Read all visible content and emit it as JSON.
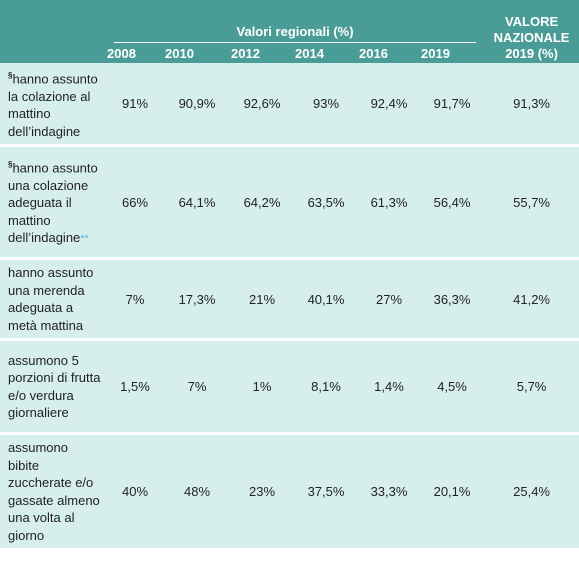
{
  "header": {
    "group_title": "Valori regionali (%)",
    "national_line1": "VALORE",
    "national_line2": "NAZIONALE",
    "national_line3": "2019 (%)",
    "years": [
      "2008",
      "2010",
      "2012",
      "2014",
      "2016",
      "2019"
    ]
  },
  "rows": [
    {
      "marker": "§",
      "label": "hanno assunto la colazione al mattino dell’indagine",
      "note": "",
      "values": [
        "91%",
        "90,9%",
        "92,6%",
        "93%",
        "92,4%",
        "91,7%"
      ],
      "national": "91,3%"
    },
    {
      "marker": "§",
      "label": "hanno assunto una colazione adeguata il mattino dell’indagine",
      "note": "**",
      "values": [
        "66%",
        "64,1%",
        "64,2%",
        "63,5%",
        "61,3%",
        "56,4%"
      ],
      "national": "55,7%"
    },
    {
      "marker": "",
      "label": "hanno assunto una merenda adeguata a metà mattina",
      "note": "",
      "values": [
        "7%",
        "17,3%",
        "21%",
        "40,1%",
        "27%",
        "36,3%"
      ],
      "national": "41,2%"
    },
    {
      "marker": "",
      "label": "assumono 5 porzioni di frutta e/o verdura giornaliere",
      "note": "",
      "values": [
        "1,5%",
        "7%",
        "1%",
        "8,1%",
        "1,4%",
        "4,5%"
      ],
      "national": "5,7%"
    },
    {
      "marker": "",
      "label": "assumono bibite zuccherate e/o gassate almeno una volta al giorno",
      "note": "",
      "values": [
        "40%",
        "48%",
        "23%",
        "37,5%",
        "33,3%",
        "20,1%"
      ],
      "national": "25,4%"
    }
  ]
}
